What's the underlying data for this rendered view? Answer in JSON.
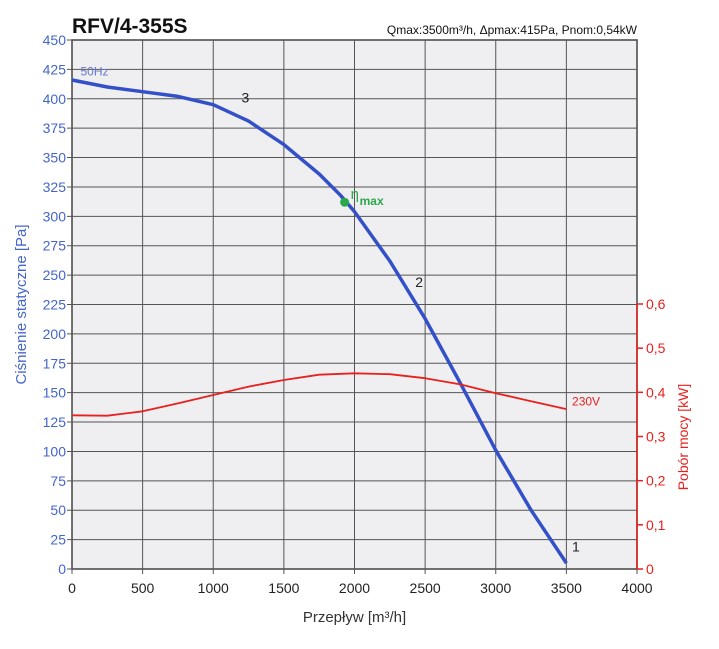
{
  "chart_data": {
    "type": "line",
    "title": "RFV/4-355S",
    "subtitle": "Qmax:3500m³/h, Δpmax:415Pa, Pnom:0,54kW",
    "xlabel": "Przepływ [m³/h]",
    "ylabel": "Ciśnienie statyczne [Pa]",
    "y2label": "Pobór mocy [kW]",
    "xlim": [
      0,
      4000
    ],
    "ylim": [
      0,
      450
    ],
    "y2lim": [
      0,
      0.6
    ],
    "xticks": [
      "0",
      "500",
      "1000",
      "1500",
      "2000",
      "2500",
      "3000",
      "3500",
      "4000"
    ],
    "yticks": [
      "0",
      "25",
      "50",
      "75",
      "100",
      "125",
      "150",
      "175",
      "200",
      "225",
      "250",
      "275",
      "300",
      "325",
      "350",
      "375",
      "400",
      "425",
      "450"
    ],
    "y2ticks": [
      "0",
      "0,1",
      "0,2",
      "0,3",
      "0,4",
      "0,5",
      "0,6"
    ],
    "grid": true,
    "series": [
      {
        "name": "50Hz",
        "axis": "left",
        "color": "#3350c8",
        "x": [
          0,
          250,
          500,
          750,
          1000,
          1250,
          1500,
          1750,
          1900,
          2000,
          2250,
          2500,
          2750,
          3000,
          3250,
          3500
        ],
        "y": [
          416,
          410,
          406,
          402,
          395,
          381,
          361,
          336,
          318,
          304,
          262,
          213,
          158,
          101,
          50,
          5
        ]
      },
      {
        "name": "230V",
        "axis": "right",
        "color": "#e8201e",
        "x": [
          0,
          250,
          500,
          750,
          1000,
          1250,
          1500,
          1750,
          2000,
          2250,
          2500,
          2750,
          3000,
          3250,
          3500
        ],
        "y": [
          0.348,
          0.347,
          0.357,
          0.375,
          0.394,
          0.413,
          0.428,
          0.44,
          0.443,
          0.441,
          0.432,
          0.418,
          0.398,
          0.38,
          0.362
        ]
      }
    ],
    "annotations": [
      {
        "text": "50Hz",
        "x": 60,
        "y": 420
      },
      {
        "text": "3",
        "x": 1200,
        "y": 397
      },
      {
        "text": "2",
        "x": 2430,
        "y": 240
      },
      {
        "text": "1",
        "x": 3540,
        "y": 15
      },
      {
        "text": "230V",
        "x": 3540,
        "y": 0.37,
        "axis": "right"
      }
    ],
    "eta_max": {
      "label": "η",
      "sub": "max",
      "x": 1930,
      "y": 312,
      "color": "#2aa84a"
    }
  }
}
